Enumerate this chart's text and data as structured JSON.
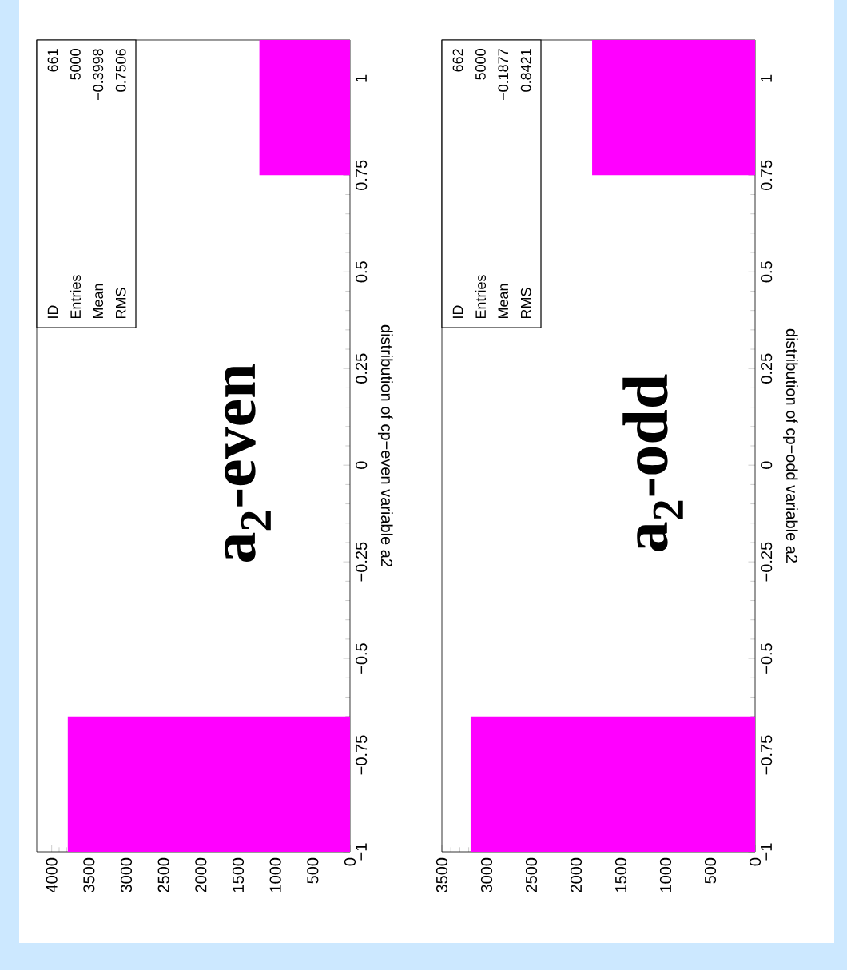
{
  "chart_data": [
    {
      "type": "histogram",
      "orientation": "horizontal",
      "title": "**a$_{2}$-even**",
      "ylabel": "distribution of cp−even variable a2",
      "bins": [
        -1,
        -0.65,
        -0.3,
        0.05,
        0.4,
        0.75,
        1.1
      ],
      "values": [
        3785,
        0,
        0,
        0,
        0,
        1215
      ],
      "color": "#ff00ff",
      "ylim": [
        -1,
        1.1
      ],
      "xlim": [
        4200,
        0
      ],
      "yticks": [
        {
          "value": -1,
          "label": "−1"
        },
        {
          "value": -0.75,
          "label": "−0.75"
        },
        {
          "value": -0.5,
          "label": "−0.5"
        },
        {
          "value": -0.25,
          "label": "−0.25"
        },
        0,
        0.25,
        0.5,
        0.75,
        1
      ],
      "xticks": [
        0,
        500,
        1000,
        1500,
        2000,
        2500,
        3000,
        3500,
        4000
      ],
      "annotations": [
        "ID",
        "Entries",
        "Mean",
        "RMS",
        "661",
        "5000",
        "−0.3998",
        "0.7506"
      ]
    },
    {
      "type": "histogram",
      "orientation": "horizontal",
      "title": "**a$_{2}$-odd**",
      "ylabel": "distribution of cp−odd variable a2",
      "bins": [
        -1,
        -0.65,
        -0.3,
        0.05,
        0.4,
        0.75,
        1.1
      ],
      "values": [
        3179,
        0,
        0,
        0,
        0,
        1821
      ],
      "color": "#ff00ff",
      "ylim": [
        -1,
        1.1
      ],
      "xlim": [
        3500,
        0
      ],
      "yticks": [
        {
          "value": -1,
          "label": "−1"
        },
        {
          "value": -0.75,
          "label": "−0.75"
        },
        {
          "value": -0.5,
          "label": "−0.5"
        },
        {
          "value": -0.25,
          "label": "−0.25"
        },
        0,
        0.25,
        0.5,
        0.75,
        1
      ],
      "xticks": [
        0,
        500,
        1000,
        1500,
        2000,
        2500,
        3000,
        3500
      ],
      "annotations": [
        "ID",
        "Entries",
        "Mean",
        "RMS",
        "662",
        "5000",
        "−0.1877",
        "0.8421"
      ]
    }
  ]
}
